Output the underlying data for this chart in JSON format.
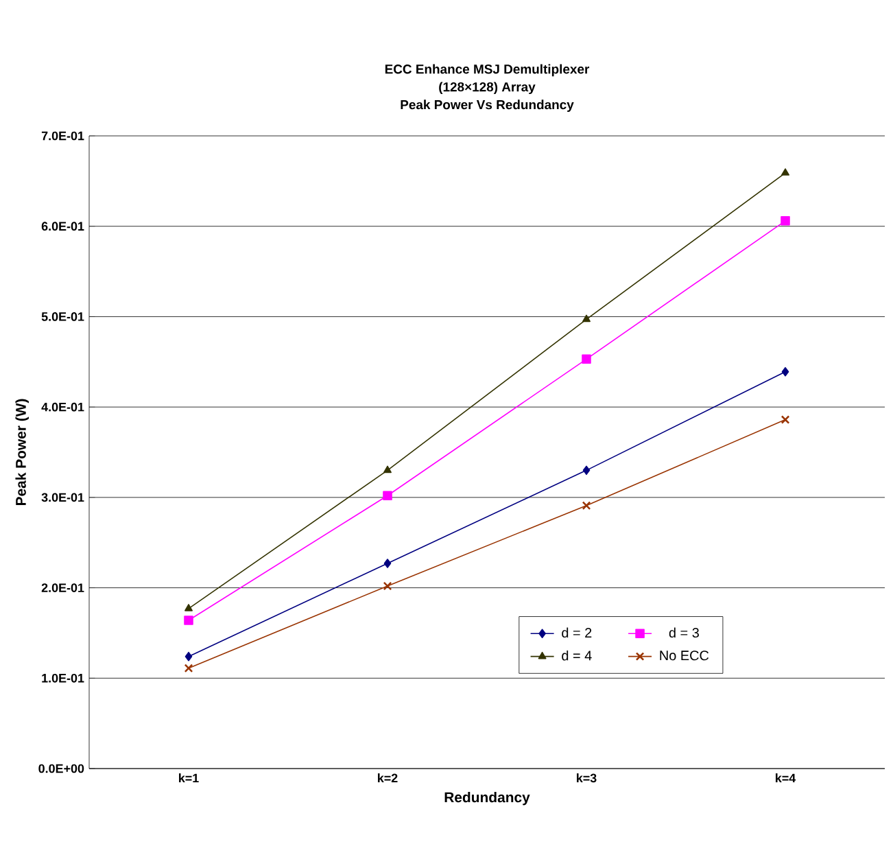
{
  "chart_data": {
    "type": "line",
    "title": "ECC Enhance MSJ Demultiplexer\n(128×128) Array\nPeak Power Vs Redundancy",
    "xlabel": "Redundancy",
    "ylabel": "Peak Power (W)",
    "categories": [
      "k=1",
      "k=2",
      "k=3",
      "k=4"
    ],
    "series": [
      {
        "name": "d = 2",
        "color": "#000080",
        "marker": "diamond",
        "values": [
          0.124,
          0.227,
          0.33,
          0.439
        ]
      },
      {
        "name": "d = 3",
        "color": "#ff00ff",
        "marker": "square",
        "values": [
          0.164,
          0.302,
          0.453,
          0.606
        ]
      },
      {
        "name": "d = 4",
        "color": "#333300",
        "marker": "triangle",
        "values": [
          0.177,
          0.33,
          0.497,
          0.659
        ]
      },
      {
        "name": "No ECC",
        "color": "#993300",
        "marker": "cross",
        "values": [
          0.111,
          0.202,
          0.291,
          0.386
        ]
      }
    ],
    "ylim": [
      0,
      0.7
    ],
    "yticks": [
      {
        "value": 0,
        "label": "0.0E+00"
      },
      {
        "value": 0.1,
        "label": "1.0E-01"
      },
      {
        "value": 0.2,
        "label": "2.0E-01"
      },
      {
        "value": 0.3,
        "label": "3.0E-01"
      },
      {
        "value": 0.4,
        "label": "4.0E-01"
      },
      {
        "value": 0.5,
        "label": "5.0E-01"
      },
      {
        "value": 0.6,
        "label": "6.0E-01"
      },
      {
        "value": 0.7,
        "label": "7.0E-01"
      }
    ],
    "grid": "y",
    "legend": "bottom right",
    "line_style": "solid"
  }
}
